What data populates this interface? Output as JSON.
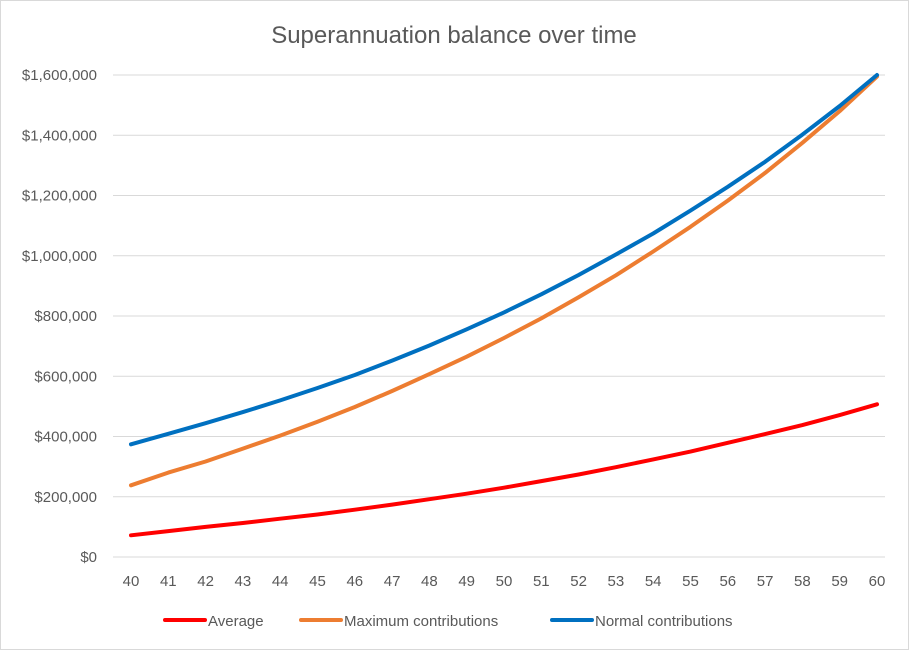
{
  "chart_data": {
    "type": "line",
    "title": "Superannuation balance over time",
    "x": [
      40,
      41,
      42,
      43,
      44,
      45,
      46,
      47,
      48,
      49,
      50,
      51,
      52,
      53,
      54,
      55,
      56,
      57,
      58,
      59,
      60
    ],
    "series": [
      {
        "name": "Average",
        "color": "#ff0000",
        "values": [
          72000,
          86000,
          100000,
          113000,
          127000,
          141000,
          157000,
          174000,
          192000,
          210000,
          230000,
          252000,
          274000,
          298000,
          324000,
          350000,
          379000,
          408000,
          438000,
          471000,
          507000
        ]
      },
      {
        "name": "Maximum contributions",
        "color": "#ed7d31",
        "values": [
          238000,
          280000,
          317000,
          360000,
          403000,
          449000,
          498000,
          551000,
          607000,
          665000,
          727000,
          792000,
          862000,
          935000,
          1014000,
          1096000,
          1183000,
          1275000,
          1375000,
          1480000,
          1595000
        ]
      },
      {
        "name": "Normal contributions",
        "color": "#0070c0",
        "values": [
          374000,
          409000,
          444000,
          481000,
          520000,
          561000,
          604000,
          652000,
          702000,
          756000,
          812000,
          872000,
          936000,
          1004000,
          1074000,
          1150000,
          1229000,
          1312000,
          1402000,
          1497000,
          1600000
        ]
      }
    ],
    "y_ticks": [
      "$0",
      "$200,000",
      "$400,000",
      "$600,000",
      "$800,000",
      "$1,000,000",
      "$1,200,000",
      "$1,400,000",
      "$1,600,000"
    ],
    "ylim": [
      0,
      1600000
    ],
    "ytick_step": 200000,
    "grid": true,
    "legend_position": "bottom",
    "gridline_color": "#d9d9d9"
  }
}
